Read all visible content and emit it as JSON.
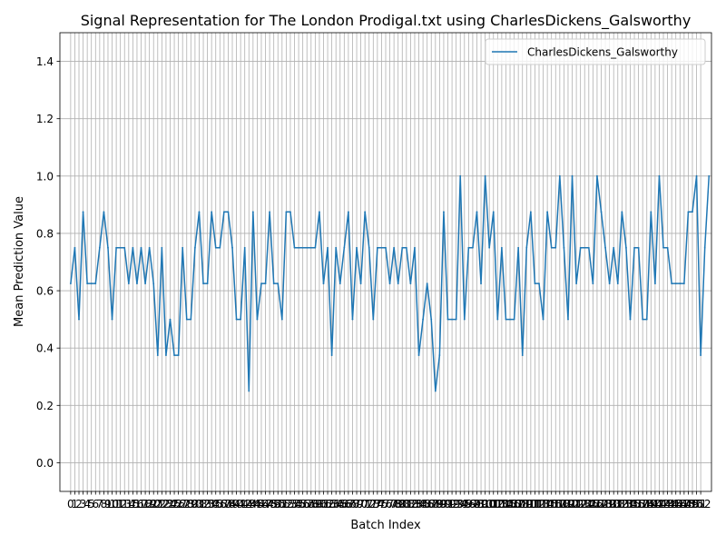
{
  "chart_data": {
    "type": "line",
    "title": "Signal Representation for The London Prodigal.txt using CharlesDickens_Galsworthy",
    "xlabel": "Batch Index",
    "ylabel": "Mean Prediction Value",
    "ylim": [
      -0.1,
      1.5
    ],
    "xlim": [
      -2.6,
      154.6
    ],
    "yticks": [
      0.0,
      0.2,
      0.4,
      0.6,
      0.8,
      1.0,
      1.2,
      1.4
    ],
    "ytick_labels": [
      "0.0",
      "0.2",
      "0.4",
      "0.6",
      "0.8",
      "1.0",
      "1.2",
      "1.4"
    ],
    "grid": true,
    "legend_placement": "upper-right",
    "line_color": "#1f77b4",
    "series": [
      {
        "name": "CharlesDickens_Galsworthy",
        "values": [
          0.625,
          0.75,
          0.5,
          0.875,
          0.625,
          0.625,
          0.625,
          0.75,
          0.875,
          0.75,
          0.5,
          0.75,
          0.75,
          0.75,
          0.625,
          0.75,
          0.625,
          0.75,
          0.625,
          0.75,
          0.625,
          0.375,
          0.75,
          0.375,
          0.5,
          0.375,
          0.375,
          0.75,
          0.5,
          0.5,
          0.75,
          0.875,
          0.625,
          0.625,
          0.875,
          0.75,
          0.75,
          0.875,
          0.875,
          0.75,
          0.5,
          0.5,
          0.75,
          0.25,
          0.875,
          0.5,
          0.625,
          0.625,
          0.875,
          0.625,
          0.625,
          0.5,
          0.875,
          0.875,
          0.75,
          0.75,
          0.75,
          0.75,
          0.75,
          0.75,
          0.875,
          0.625,
          0.75,
          0.375,
          0.75,
          0.625,
          0.75,
          0.875,
          0.5,
          0.75,
          0.625,
          0.875,
          0.75,
          0.5,
          0.75,
          0.75,
          0.75,
          0.625,
          0.75,
          0.625,
          0.75,
          0.75,
          0.625,
          0.75,
          0.375,
          0.5,
          0.625,
          0.5,
          0.25,
          0.375,
          0.875,
          0.5,
          0.5,
          0.5,
          1.0,
          0.5,
          0.75,
          0.75,
          0.875,
          0.625,
          1.0,
          0.75,
          0.875,
          0.5,
          0.75,
          0.5,
          0.5,
          0.5,
          0.75,
          0.375,
          0.75,
          0.875,
          0.625,
          0.625,
          0.5,
          0.875,
          0.75,
          0.75,
          1.0,
          0.75,
          0.5,
          1.0,
          0.625,
          0.75,
          0.75,
          0.75,
          0.625,
          1.0,
          0.875,
          0.75,
          0.625,
          0.75,
          0.625,
          0.875,
          0.75,
          0.5,
          0.75,
          0.75,
          0.5,
          0.5,
          0.875,
          0.625,
          1.0,
          0.75,
          0.75,
          0.625,
          0.625,
          0.625,
          0.625,
          0.875,
          0.875,
          1.0,
          0.375,
          0.75,
          1.0
        ]
      }
    ],
    "xtick_labels": [
      "0",
      "1",
      "2",
      "3",
      "4",
      "5",
      "6",
      "7",
      "8",
      "9",
      "10",
      "11",
      "12",
      "13",
      "14",
      "15",
      "16",
      "17",
      "18",
      "19",
      "20",
      "21",
      "22",
      "23",
      "24",
      "25",
      "26",
      "27",
      "28",
      "29",
      "30",
      "31",
      "32",
      "33",
      "34",
      "35",
      "36",
      "37",
      "38",
      "39",
      "40",
      "41",
      "42",
      "43",
      "44",
      "45",
      "46",
      "47",
      "48",
      "49",
      "50",
      "51",
      "52",
      "53",
      "54",
      "55",
      "56",
      "57",
      "58",
      "59",
      "60",
      "61",
      "62",
      "63",
      "64",
      "65",
      "66",
      "67",
      "68",
      "69",
      "70",
      "71",
      "72",
      "73",
      "74",
      "75",
      "76",
      "77",
      "78",
      "79",
      "80",
      "81",
      "82",
      "83",
      "84",
      "85",
      "86",
      "87",
      "88",
      "89",
      "90",
      "91",
      "92",
      "93",
      "94",
      "95",
      "96",
      "97",
      "98",
      "99",
      "100",
      "101",
      "102",
      "103",
      "104",
      "105",
      "106",
      "107",
      "108",
      "109",
      "110",
      "111",
      "112",
      "113",
      "114",
      "115",
      "116",
      "117",
      "118",
      "119",
      "120",
      "121",
      "122",
      "123",
      "124",
      "125",
      "126",
      "127",
      "128",
      "129",
      "130",
      "131",
      "132",
      "133",
      "134",
      "135",
      "136",
      "137",
      "138",
      "139",
      "140",
      "141",
      "142",
      "143",
      "144",
      "145",
      "146",
      "147",
      "148",
      "149",
      "150",
      "151",
      "152"
    ]
  }
}
